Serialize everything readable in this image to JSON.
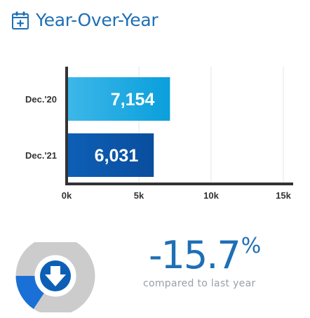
{
  "header": {
    "title": "Year-Over-Year",
    "icon": "calendar-plus-icon"
  },
  "chart_data": {
    "type": "bar",
    "orientation": "horizontal",
    "categories": [
      "Dec.'20",
      "Dec.'21"
    ],
    "values": [
      7154,
      6031
    ],
    "value_labels": [
      "7,154",
      "6,031"
    ],
    "xlim": [
      0,
      15000
    ],
    "ticks": [
      0,
      5000,
      10000,
      15000
    ],
    "tick_labels": [
      "0k",
      "5k",
      "10k",
      "15k"
    ],
    "grid": true,
    "colors": [
      "#29a8e0",
      "#0b5db0"
    ]
  },
  "summary": {
    "change_value": "-15.7",
    "change_unit": "%",
    "caption": "compared to last year",
    "change_fraction": -0.157,
    "direction_icon": "arrow-down-icon",
    "accent_color": "#1e6fb5",
    "ring_color": "#cccccc"
  }
}
